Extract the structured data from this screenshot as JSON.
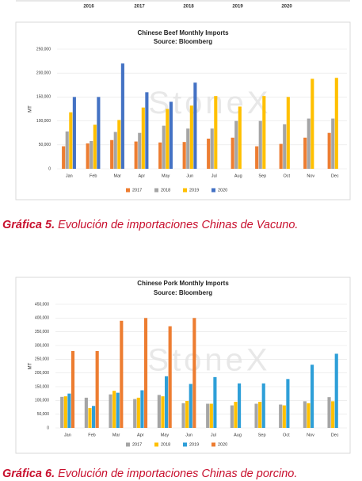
{
  "top_axis_labels": [
    "2016",
    "2017",
    "2018",
    "2019",
    "2020"
  ],
  "chart_data": [
    {
      "type": "bar",
      "title": "Chinese Beef Monthly Imports",
      "subtitle": "Source: Bloomberg",
      "y_label": "MT",
      "watermark": "StoneX",
      "categories": [
        "Jan",
        "Feb",
        "Mar",
        "Apr",
        "May",
        "Jun",
        "Jul",
        "Aug",
        "Sep",
        "Oct",
        "Nov",
        "Dec"
      ],
      "series": [
        {
          "name": "2017",
          "color": "#ed7d31",
          "values": [
            47000,
            53000,
            60000,
            57000,
            55000,
            56000,
            63000,
            65000,
            47000,
            52000,
            65000,
            75000
          ]
        },
        {
          "name": "2018",
          "color": "#a5a5a5",
          "values": [
            78000,
            58000,
            77000,
            75000,
            90000,
            84000,
            84000,
            100000,
            100000,
            93000,
            105000,
            105000
          ]
        },
        {
          "name": "2019",
          "color": "#ffc000",
          "values": [
            118000,
            92000,
            102000,
            128000,
            125000,
            132000,
            152000,
            130000,
            152000,
            150000,
            188000,
            190000
          ]
        },
        {
          "name": "2020",
          "color": "#4472c4",
          "values": [
            150000,
            150000,
            220000,
            160000,
            140000,
            180000,
            null,
            null,
            null,
            null,
            null,
            null
          ]
        }
      ],
      "ylim": [
        0,
        250000
      ],
      "yticks": [
        0,
        {
          "value": 50000,
          "label": "50,000"
        },
        {
          "value": 100000,
          "label": "100,000"
        },
        {
          "value": 150000,
          "label": "150,000"
        },
        {
          "value": 200000,
          "label": "200,000"
        },
        {
          "value": 250000,
          "label": "250,000"
        }
      ],
      "grid": true,
      "legend": "bottom"
    },
    {
      "type": "bar",
      "title": "Chinese Pork Monthly Imports",
      "subtitle": "Source: Bloomberg",
      "y_label": "MT",
      "watermark": "StoneX",
      "categories": [
        "Jan",
        "Feb",
        "Mar",
        "Apr",
        "May",
        "Jun",
        "Jul",
        "Aug",
        "Sep",
        "Oct",
        "Nov",
        "Dec"
      ],
      "series": [
        {
          "name": "2017",
          "color": "#a5a5a5",
          "values": [
            113000,
            110000,
            122000,
            105000,
            120000,
            90000,
            88000,
            82000,
            88000,
            85000,
            97000,
            112000
          ]
        },
        {
          "name": "2018",
          "color": "#ffc000",
          "values": [
            115000,
            72000,
            135000,
            110000,
            115000,
            98000,
            88000,
            95000,
            95000,
            82000,
            90000,
            97000
          ]
        },
        {
          "name": "2019",
          "color": "#2e9fd8",
          "values": [
            125000,
            80000,
            128000,
            137000,
            188000,
            160000,
            185000,
            162000,
            162000,
            178000,
            230000,
            270000
          ]
        },
        {
          "name": "2020",
          "color": "#ed7d31",
          "values": [
            280000,
            280000,
            390000,
            400000,
            370000,
            400000,
            null,
            null,
            null,
            null,
            null,
            null
          ]
        }
      ],
      "ylim": [
        0,
        450000
      ],
      "yticks": [
        0,
        {
          "value": 50000,
          "label": "50,000"
        },
        {
          "value": 100000,
          "label": "100,000"
        },
        {
          "value": 150000,
          "label": "150,000"
        },
        {
          "value": 200000,
          "label": "200,000"
        },
        {
          "value": 250000,
          "label": "250,000"
        },
        {
          "value": 300000,
          "label": "300,000"
        },
        {
          "value": 350000,
          "label": "350,000"
        },
        {
          "value": 400000,
          "label": "400,000"
        },
        {
          "value": 450000,
          "label": "450,000"
        }
      ],
      "grid": true,
      "legend": "bottom"
    }
  ],
  "captions": [
    {
      "label": "Gráfica 5.",
      "text": "Evolución de importaciones Chinas de Vacuno."
    },
    {
      "label": "Gráfica 6.",
      "text": "Evolución de importaciones Chinas de porcino."
    }
  ]
}
